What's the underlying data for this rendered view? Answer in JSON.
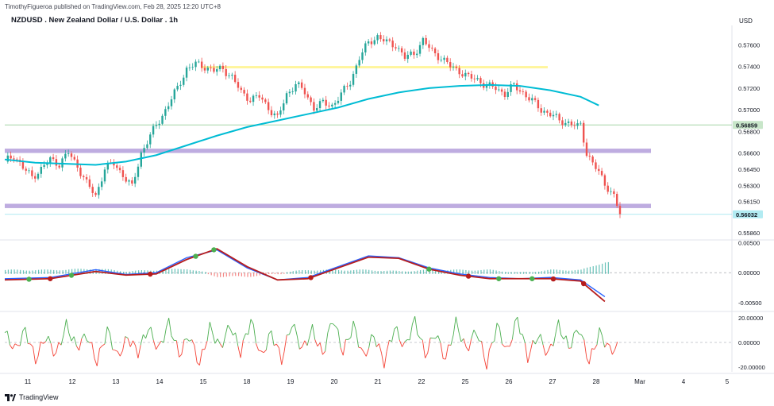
{
  "header": {
    "published": "TimothyFigueroa published on TradingView.com, Feb 28, 2025 12:20 UTC+8",
    "title": "NZDUSD . New Zealand Dollar / U.S. Dollar . 1h",
    "currency": "USD"
  },
  "footer": {
    "brand": "TradingView"
  },
  "colors": {
    "up": "#26a69a",
    "down": "#ef5350",
    "ma": "#00bcd4",
    "support_zone": "#b39ddb",
    "resistance_line": "#fff59d",
    "level_line": "#a5d6a7",
    "macd_fast": "#2962ff",
    "macd_slow": "#b71c1c",
    "osc_up": "#4caf50",
    "osc_down": "#f44336"
  },
  "chart_data": [
    {
      "type": "candlestick",
      "symbol": "NZDUSD",
      "timeframe": "1h",
      "x_ticks": [
        "11",
        "12",
        "13",
        "14",
        "15",
        "18",
        "19",
        "20",
        "21",
        "22",
        "25",
        "26",
        "27",
        "28",
        "Mar",
        "4",
        "5"
      ],
      "y_ticks": [
        "0.57600",
        "0.57400",
        "0.57200",
        "0.57000",
        "0.56800",
        "0.56600",
        "0.56450",
        "0.56300",
        "0.56150",
        "0.55860"
      ],
      "ylim": [
        0.5581,
        0.5778
      ],
      "last_price_label": "0.56032",
      "level_label": "0.56859",
      "level_lines": [
        0.56859,
        0.56032
      ],
      "zones": [
        {
          "name": "upper-support",
          "low": 0.566,
          "high": 0.5664
        },
        {
          "name": "lower-support",
          "low": 0.5609,
          "high": 0.5613
        }
      ],
      "resistance_line": {
        "price": 0.5739,
        "from_day": "15",
        "to_day": "26"
      },
      "close_path": [
        [
          0,
          0.5652
        ],
        [
          3,
          0.5658
        ],
        [
          6,
          0.5646
        ],
        [
          9,
          0.5638
        ],
        [
          12,
          0.5645
        ],
        [
          15,
          0.5654
        ],
        [
          18,
          0.565
        ],
        [
          21,
          0.566
        ],
        [
          24,
          0.5648
        ],
        [
          27,
          0.5632
        ],
        [
          30,
          0.562
        ],
        [
          33,
          0.5646
        ],
        [
          36,
          0.565
        ],
        [
          39,
          0.564
        ],
        [
          42,
          0.5628
        ],
        [
          45,
          0.566
        ],
        [
          48,
          0.5676
        ],
        [
          51,
          0.569
        ],
        [
          54,
          0.5705
        ],
        [
          57,
          0.572
        ],
        [
          60,
          0.5738
        ],
        [
          63,
          0.5742
        ],
        [
          66,
          0.574
        ],
        [
          69,
          0.5736
        ],
        [
          72,
          0.5738
        ],
        [
          75,
          0.573
        ],
        [
          78,
          0.5716
        ],
        [
          81,
          0.571
        ],
        [
          84,
          0.5712
        ],
        [
          87,
          0.5702
        ],
        [
          90,
          0.5692
        ],
        [
          93,
          0.5714
        ],
        [
          96,
          0.5724
        ],
        [
          99,
          0.5716
        ],
        [
          102,
          0.5702
        ],
        [
          105,
          0.5706
        ],
        [
          108,
          0.5704
        ],
        [
          111,
          0.5714
        ],
        [
          114,
          0.5726
        ],
        [
          117,
          0.5748
        ],
        [
          120,
          0.5762
        ],
        [
          123,
          0.5768
        ],
        [
          126,
          0.5762
        ],
        [
          129,
          0.576
        ],
        [
          132,
          0.5748
        ],
        [
          135,
          0.5752
        ],
        [
          138,
          0.5764
        ],
        [
          141,
          0.5754
        ],
        [
          144,
          0.5748
        ],
        [
          147,
          0.574
        ],
        [
          150,
          0.5736
        ],
        [
          153,
          0.573
        ],
        [
          156,
          0.5728
        ],
        [
          159,
          0.5722
        ],
        [
          162,
          0.572
        ],
        [
          165,
          0.5715
        ],
        [
          168,
          0.5722
        ],
        [
          171,
          0.5716
        ],
        [
          174,
          0.5708
        ],
        [
          177,
          0.57
        ],
        [
          180,
          0.5696
        ],
        [
          183,
          0.569
        ],
        [
          186,
          0.5688
        ],
        [
          189,
          0.5684
        ],
        [
          190,
          0.5686
        ],
        [
          192,
          0.566
        ],
        [
          195,
          0.5646
        ],
        [
          198,
          0.5632
        ],
        [
          201,
          0.562
        ],
        [
          203,
          0.5603
        ]
      ],
      "moving_average": [
        [
          0,
          0.5654
        ],
        [
          10,
          0.5651
        ],
        [
          20,
          0.565
        ],
        [
          30,
          0.5649
        ],
        [
          40,
          0.5652
        ],
        [
          50,
          0.5658
        ],
        [
          60,
          0.5667
        ],
        [
          70,
          0.5676
        ],
        [
          80,
          0.5684
        ],
        [
          90,
          0.569
        ],
        [
          100,
          0.5696
        ],
        [
          110,
          0.5702
        ],
        [
          120,
          0.571
        ],
        [
          130,
          0.5716
        ],
        [
          140,
          0.572
        ],
        [
          150,
          0.5722
        ],
        [
          160,
          0.5723
        ],
        [
          170,
          0.5722
        ],
        [
          180,
          0.5718
        ],
        [
          190,
          0.5712
        ],
        [
          196,
          0.5704
        ]
      ]
    },
    {
      "type": "line",
      "name_hint": "macd-panel",
      "y_ticks": [
        "0.00500",
        "0.00000",
        "-0.00500"
      ],
      "ylim": [
        -0.0062,
        0.0052
      ],
      "fast": [
        [
          0,
          -0.001
        ],
        [
          15,
          -0.0008
        ],
        [
          30,
          0.0005
        ],
        [
          40,
          -0.0003
        ],
        [
          50,
          0.0
        ],
        [
          60,
          0.0025
        ],
        [
          70,
          0.0038
        ],
        [
          80,
          0.0008
        ],
        [
          90,
          -0.0012
        ],
        [
          100,
          -0.0008
        ],
        [
          110,
          0.001
        ],
        [
          120,
          0.0028
        ],
        [
          130,
          0.0025
        ],
        [
          140,
          0.0008
        ],
        [
          150,
          -0.0002
        ],
        [
          160,
          -0.0008
        ],
        [
          170,
          -0.001
        ],
        [
          180,
          -0.0008
        ],
        [
          190,
          -0.0012
        ],
        [
          198,
          -0.004
        ]
      ],
      "slow": [
        [
          0,
          -0.0012
        ],
        [
          15,
          -0.001
        ],
        [
          30,
          0.0002
        ],
        [
          40,
          -0.0004
        ],
        [
          50,
          -0.0002
        ],
        [
          60,
          0.0022
        ],
        [
          70,
          0.004
        ],
        [
          80,
          0.001
        ],
        [
          90,
          -0.0012
        ],
        [
          100,
          -0.001
        ],
        [
          110,
          0.0008
        ],
        [
          120,
          0.0026
        ],
        [
          130,
          0.0024
        ],
        [
          140,
          0.0006
        ],
        [
          150,
          -0.0004
        ],
        [
          160,
          -0.001
        ],
        [
          170,
          -0.001
        ],
        [
          180,
          -0.001
        ],
        [
          190,
          -0.0014
        ],
        [
          198,
          -0.0048
        ]
      ]
    },
    {
      "type": "line",
      "name_hint": "oscillator-panel",
      "y_ticks": [
        "20.00000",
        "0.00000",
        "-20.00000"
      ],
      "ylim": [
        -24,
        24
      ],
      "values": [
        8,
        -6,
        10,
        -14,
        5,
        -10,
        14,
        -4,
        6,
        -16,
        10,
        -12,
        4,
        -8,
        12,
        -6,
        16,
        -10,
        6,
        -18,
        12,
        -4,
        14,
        -8,
        18,
        -12,
        8,
        -14,
        16,
        -6,
        10,
        -10,
        20,
        -8,
        14,
        -12,
        6,
        -16,
        12,
        -4,
        18,
        -10,
        8,
        -14,
        16,
        -6,
        10,
        -18,
        14,
        -8,
        20,
        -12,
        6,
        -10,
        14,
        -4,
        12,
        -16,
        8,
        -6,
        -4
      ]
    }
  ]
}
